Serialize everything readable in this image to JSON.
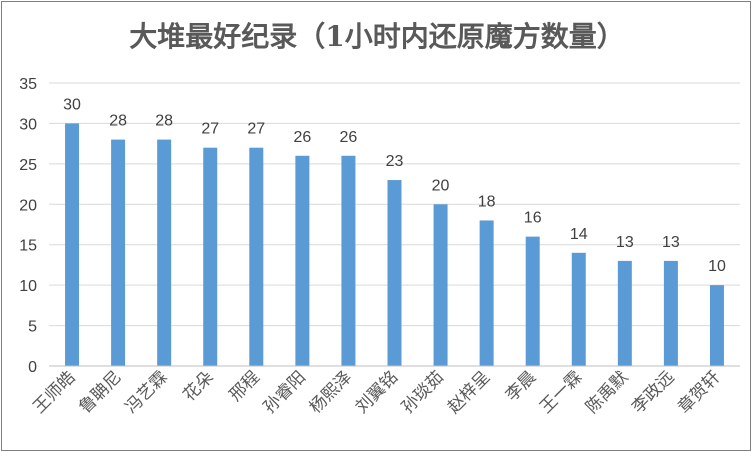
{
  "chart_data": {
    "type": "bar",
    "title": "大堆最好纪录（1小时内还原魔方数量）",
    "xlabel": "",
    "ylabel": "",
    "ylim": [
      0,
      35
    ],
    "yticks": [
      0,
      5,
      10,
      15,
      20,
      25,
      30,
      35
    ],
    "grid": true,
    "legend": "none",
    "bar_color": "#5b9bd5",
    "categories": [
      "王师皓",
      "鲁聃尼",
      "冯艺霖",
      "花朵",
      "邢程",
      "孙睿阳",
      "杨熙泽",
      "刘翼铭",
      "孙琰茹",
      "赵梓呈",
      "李晨",
      "王一霖",
      "陈禹默",
      "李政远",
      "章贺轩"
    ],
    "values": [
      30,
      28,
      28,
      27,
      27,
      26,
      26,
      23,
      20,
      18,
      16,
      14,
      13,
      13,
      10
    ]
  }
}
